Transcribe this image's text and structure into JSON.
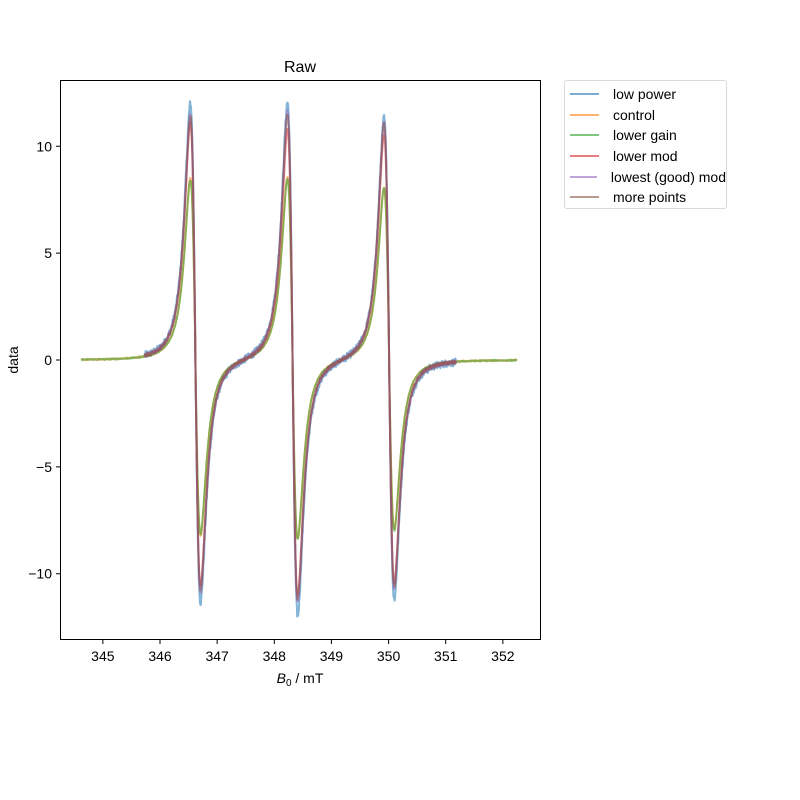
{
  "chart_data": {
    "type": "line",
    "title": "Raw",
    "xlabel": "B0 / mT",
    "xlabel_main": "B",
    "xlabel_sub": "0",
    "xlabel_rest": " / mT",
    "ylabel": "data",
    "xlim": [
      344.25,
      352.65
    ],
    "ylim": [
      -13.1,
      13.1
    ],
    "xticks": [
      345,
      346,
      347,
      348,
      349,
      350,
      351,
      352
    ],
    "yticks": [
      -10,
      -5,
      0,
      5,
      10
    ],
    "ytick_labels": [
      "−10",
      "−5",
      "0",
      "5",
      "10"
    ],
    "grid": false,
    "legend_position": "outside upper right",
    "line_centers_mT": [
      346.62,
      348.32,
      350.01
    ],
    "series": [
      {
        "name": "low power",
        "color": "#1f77b4",
        "x_range": [
          345.73,
          351.18
        ],
        "peak_max": [
          11.8,
          11.9,
          11.2
        ],
        "peak_min": [
          -11.2,
          -11.8,
          -11.0
        ],
        "noise": 0.18
      },
      {
        "name": "control",
        "color": "#ff7f0e",
        "x_range": [
          344.62,
          352.25
        ],
        "peak_max": [
          8.3,
          8.4,
          7.9
        ],
        "peak_min": [
          -8.1,
          -8.2,
          -7.7
        ],
        "noise": 0.03
      },
      {
        "name": "lower gain",
        "color": "#2ca02c",
        "x_range": [
          344.62,
          352.25
        ],
        "peak_max": [
          8.2,
          8.3,
          7.9
        ],
        "peak_min": [
          -8.0,
          -8.2,
          -7.8
        ],
        "noise": 0.03
      },
      {
        "name": "lower mod",
        "color": "#d62728",
        "x_range": [
          345.73,
          351.18
        ],
        "peak_max": [
          10.9,
          10.6,
          10.4
        ],
        "peak_min": [
          -10.4,
          -10.8,
          -10.2
        ],
        "noise": 0.06
      },
      {
        "name": "lowest (good) mod",
        "color": "#9467bd",
        "x_range": [
          345.73,
          351.18
        ],
        "peak_max": [
          11.3,
          11.5,
          11.0
        ],
        "peak_min": [
          -10.7,
          -11.2,
          -10.5
        ],
        "noise": 0.1
      },
      {
        "name": "more points",
        "color": "#8c564b",
        "x_range": [
          345.73,
          351.18
        ],
        "peak_max": [
          11.2,
          11.3,
          10.9
        ],
        "peak_min": [
          -10.6,
          -11.0,
          -10.4
        ],
        "noise": 0.08
      }
    ]
  }
}
